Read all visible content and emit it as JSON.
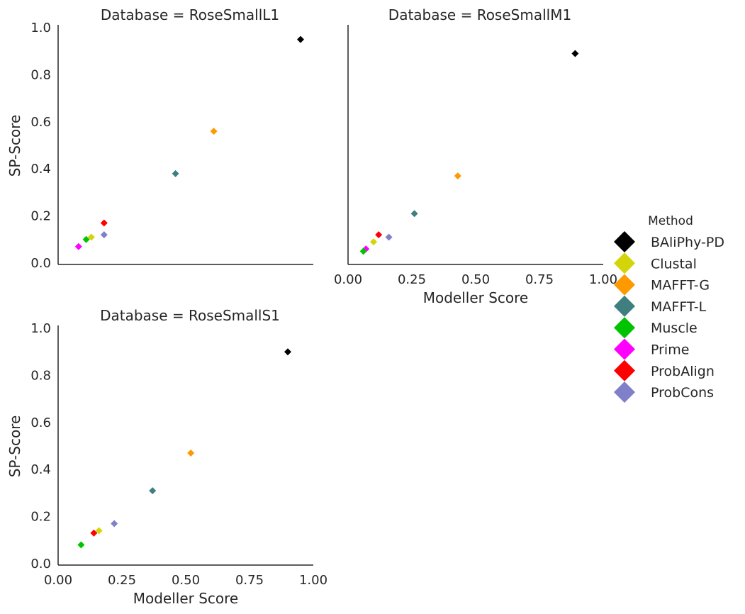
{
  "chart_data": {
    "type": "scatter",
    "marker": "diamond",
    "legend": {
      "title": "Method",
      "placement": "right",
      "entries": [
        {
          "name": "BAliPhy-PD",
          "color": "#000000"
        },
        {
          "name": "Clustal",
          "color": "#d4d40a"
        },
        {
          "name": "MAFFT-G",
          "color": "#ff9900"
        },
        {
          "name": "MAFFT-L",
          "color": "#3f7f7f"
        },
        {
          "name": "Muscle",
          "color": "#00c400"
        },
        {
          "name": "Prime",
          "color": "#ff00ff"
        },
        {
          "name": "ProbAlign",
          "color": "#ff0000"
        },
        {
          "name": "ProbCons",
          "color": "#8080c8"
        }
      ]
    },
    "panels": [
      {
        "title": "Database = RoseSmallL1",
        "xlabel": "",
        "ylabel": "SP-Score",
        "xlim": [
          0.0,
          1.0
        ],
        "ylim": [
          0.0,
          1.0
        ],
        "xticks": [],
        "yticks": [
          "0.0",
          "0.2",
          "0.4",
          "0.6",
          "0.8",
          "1.0"
        ],
        "points": [
          {
            "method": "BAliPhy-PD",
            "x": 0.95,
            "y": 0.95
          },
          {
            "method": "MAFFT-G",
            "x": 0.61,
            "y": 0.56
          },
          {
            "method": "MAFFT-L",
            "x": 0.46,
            "y": 0.38
          },
          {
            "method": "ProbAlign",
            "x": 0.18,
            "y": 0.17
          },
          {
            "method": "ProbCons",
            "x": 0.18,
            "y": 0.12
          },
          {
            "method": "Clustal",
            "x": 0.13,
            "y": 0.11
          },
          {
            "method": "Muscle",
            "x": 0.11,
            "y": 0.1
          },
          {
            "method": "Prime",
            "x": 0.08,
            "y": 0.07
          }
        ]
      },
      {
        "title": "Database = RoseSmallM1",
        "xlabel": "Modeller Score",
        "ylabel": "",
        "xlim": [
          0.0,
          1.0
        ],
        "ylim": [
          0.0,
          1.0
        ],
        "xticks": [
          "0.00",
          "0.25",
          "0.50",
          "0.75",
          "1.00"
        ],
        "yticks": [],
        "points": [
          {
            "method": "BAliPhy-PD",
            "x": 0.89,
            "y": 0.89
          },
          {
            "method": "MAFFT-G",
            "x": 0.43,
            "y": 0.37
          },
          {
            "method": "MAFFT-L",
            "x": 0.26,
            "y": 0.21
          },
          {
            "method": "ProbAlign",
            "x": 0.12,
            "y": 0.12
          },
          {
            "method": "ProbCons",
            "x": 0.16,
            "y": 0.11
          },
          {
            "method": "Clustal",
            "x": 0.1,
            "y": 0.09
          },
          {
            "method": "Prime",
            "x": 0.07,
            "y": 0.06
          },
          {
            "method": "Muscle",
            "x": 0.06,
            "y": 0.05
          }
        ]
      },
      {
        "title": "Database = RoseSmallS1",
        "xlabel": "Modeller Score",
        "ylabel": "SP-Score",
        "xlim": [
          0.0,
          1.0
        ],
        "ylim": [
          0.0,
          1.0
        ],
        "xticks": [
          "0.00",
          "0.25",
          "0.50",
          "0.75",
          "1.00"
        ],
        "yticks": [
          "0.0",
          "0.2",
          "0.4",
          "0.6",
          "0.8",
          "1.0"
        ],
        "points": [
          {
            "method": "BAliPhy-PD",
            "x": 0.9,
            "y": 0.9
          },
          {
            "method": "MAFFT-G",
            "x": 0.52,
            "y": 0.47
          },
          {
            "method": "MAFFT-L",
            "x": 0.37,
            "y": 0.31
          },
          {
            "method": "ProbCons",
            "x": 0.22,
            "y": 0.17
          },
          {
            "method": "Clustal",
            "x": 0.16,
            "y": 0.14
          },
          {
            "method": "ProbAlign",
            "x": 0.14,
            "y": 0.13
          },
          {
            "method": "Muscle",
            "x": 0.09,
            "y": 0.08
          }
        ]
      }
    ]
  }
}
